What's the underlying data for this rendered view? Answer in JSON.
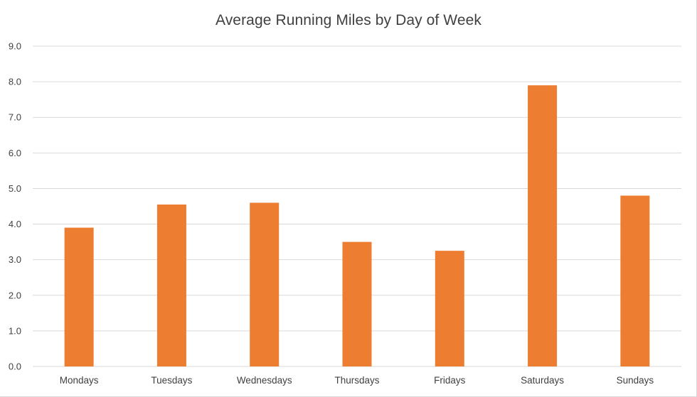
{
  "chart_data": {
    "type": "bar",
    "title": "Average Running Miles by Day of Week",
    "xlabel": "",
    "ylabel": "",
    "categories": [
      "Mondays",
      "Tuesdays",
      "Wednesdays",
      "Thursdays",
      "Fridays",
      "Saturdays",
      "Sundays"
    ],
    "values": [
      3.9,
      4.55,
      4.6,
      3.5,
      3.25,
      7.9,
      4.8
    ],
    "ylim": [
      0,
      9
    ],
    "yticks": [
      "0.0",
      "1.0",
      "2.0",
      "3.0",
      "4.0",
      "5.0",
      "6.0",
      "7.0",
      "8.0",
      "9.0"
    ],
    "grid": true,
    "legend": "none",
    "bar_color": "#ED7D31",
    "grid_color": "#d9d9d9",
    "text_color": "#404040"
  }
}
